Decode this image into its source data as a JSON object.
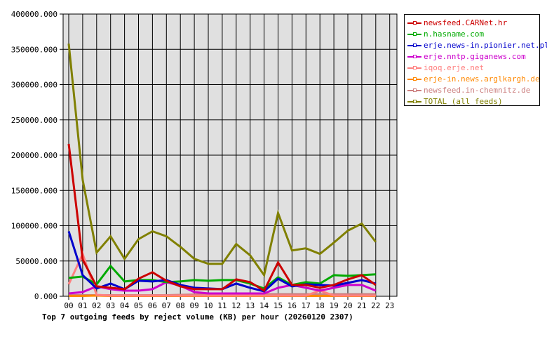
{
  "chart_data": {
    "type": "line",
    "title": "Top 7 outgoing feeds by reject volume (KB) per hour (20260120 2307)",
    "xlabel": "",
    "ylabel": "",
    "ylim": [
      0,
      400000
    ],
    "grid": true,
    "legend_position": "right",
    "x": [
      "00",
      "01",
      "02",
      "03",
      "04",
      "05",
      "06",
      "07",
      "08",
      "09",
      "10",
      "11",
      "12",
      "13",
      "14",
      "15",
      "16",
      "17",
      "18",
      "19",
      "20",
      "21",
      "22",
      "23"
    ],
    "yticks": [
      "0.000",
      "50000.000",
      "100000.000",
      "150000.000",
      "200000.000",
      "250000.000",
      "300000.000",
      "350000.000",
      "400000.000"
    ],
    "series": [
      {
        "name": "newsfeed.CARNet.hr",
        "color": "#cc0000",
        "values": [
          216000,
          52000,
          14000,
          12000,
          10000,
          25000,
          34000,
          22000,
          14000,
          10000,
          10000,
          10000,
          24000,
          20000,
          8000,
          48000,
          16000,
          16000,
          12000,
          16000,
          24000,
          30000,
          16000
        ]
      },
      {
        "name": "n.hasname.com",
        "color": "#00aa00",
        "values": [
          26000,
          28000,
          17000,
          43000,
          21000,
          23000,
          23000,
          20000,
          21000,
          23000,
          22000,
          23000,
          23000,
          18000,
          11000,
          27000,
          16000,
          20000,
          18000,
          30000,
          29000,
          30000,
          31000
        ]
      },
      {
        "name": "erje.news-in.pionier.net.pl",
        "color": "#0000cc",
        "values": [
          92000,
          30000,
          11000,
          18000,
          10000,
          22000,
          21000,
          23000,
          16000,
          12000,
          11000,
          10000,
          18000,
          12000,
          7000,
          25000,
          14000,
          17000,
          16000,
          15000,
          19000,
          23000,
          18000
        ]
      },
      {
        "name": "erje.nntp.giganews.com",
        "color": "#cc00cc",
        "values": [
          4000,
          6000,
          14000,
          10000,
          8000,
          8000,
          10000,
          20000,
          15000,
          6000,
          4000,
          4000,
          4000,
          4000,
          4000,
          12000,
          16000,
          12000,
          8000,
          12000,
          16000,
          16000,
          8000
        ]
      },
      {
        "name": "iqoq.erje.net",
        "color": "#ff8080",
        "values": [
          17000,
          60000,
          2000,
          1000,
          1000,
          1000,
          1000,
          1000,
          1000,
          1000,
          1000,
          1000,
          1000,
          1000,
          1000,
          1000,
          1000,
          1000,
          8000,
          1000,
          1000,
          1000,
          1000
        ]
      },
      {
        "name": "erje-in.news.arglkargh.de",
        "color": "#ff8800",
        "values": [
          500,
          500,
          1000,
          500,
          500,
          500,
          500,
          500,
          500,
          500,
          500,
          500,
          500,
          500,
          500,
          500,
          500,
          500,
          500,
          500,
          500,
          500,
          500
        ]
      },
      {
        "name": "newsfeed.in-chemnitz.de",
        "color": "#cc8080",
        "values": [
          1500,
          1500,
          1500,
          1500,
          1500,
          1500,
          1500,
          1500,
          2000,
          2500,
          2500,
          2500,
          3000,
          3000,
          3000,
          3000,
          3000,
          3000,
          3000,
          3000,
          3000,
          3000,
          3000
        ]
      },
      {
        "name": "TOTAL (all feeds)",
        "color": "#808000",
        "values": [
          358000,
          165000,
          62000,
          85000,
          53000,
          81000,
          92000,
          85000,
          70000,
          53000,
          46000,
          46000,
          74000,
          58000,
          30000,
          118000,
          65000,
          68000,
          60000,
          76000,
          93000,
          103000,
          77000
        ]
      }
    ]
  }
}
